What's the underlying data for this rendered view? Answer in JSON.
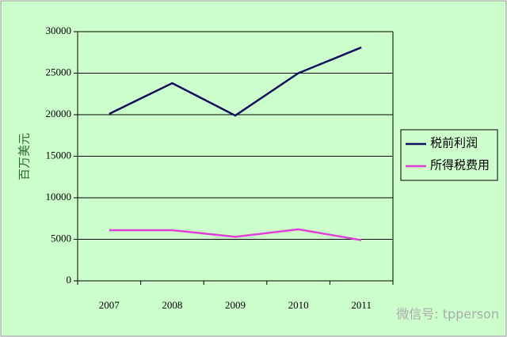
{
  "chart_data": {
    "type": "line",
    "y_label": "百万美元",
    "categories": [
      "2007",
      "2008",
      "2009",
      "2010",
      "2011"
    ],
    "series": [
      {
        "name": "税前利润",
        "color": "#101060",
        "values": [
          20100,
          23800,
          19900,
          25000,
          28100
        ]
      },
      {
        "name": "所得税费用",
        "color": "#e040d8",
        "values": [
          6100,
          6100,
          5300,
          6200,
          4900
        ]
      }
    ],
    "ylim": [
      0,
      30000
    ],
    "yticks": [
      0,
      5000,
      10000,
      15000,
      20000,
      25000,
      30000
    ],
    "grid": true,
    "legend": "right",
    "watermark": "微信号: tpperson"
  }
}
